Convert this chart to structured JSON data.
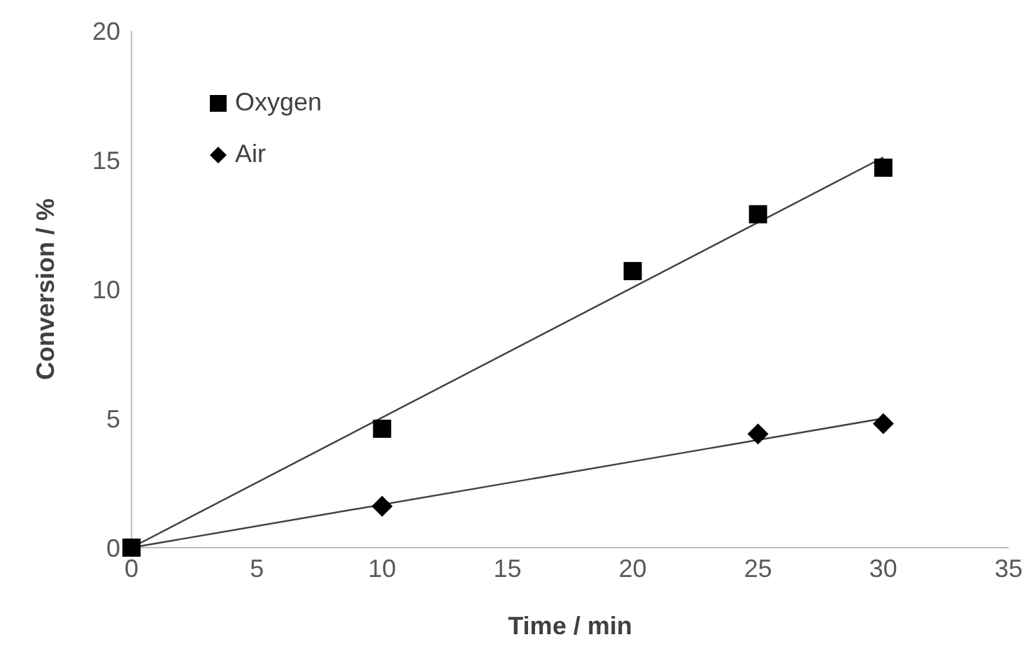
{
  "chart_data": {
    "type": "scatter",
    "xlabel": "Time / min",
    "ylabel": "Conversion / %",
    "xlim": [
      0,
      35
    ],
    "xticks": [
      0,
      5,
      10,
      15,
      20,
      25,
      30,
      35
    ],
    "ylim": [
      0,
      20
    ],
    "yticks": [
      0,
      5,
      10,
      15,
      20
    ],
    "grid": false,
    "legend": "top left",
    "series": [
      {
        "name": "Oxygen",
        "color": "#000000",
        "marker": "square",
        "x": [
          0,
          10,
          20,
          25,
          30
        ],
        "values": [
          0,
          4.6,
          10.7,
          12.9,
          14.7
        ]
      },
      {
        "name": "Air",
        "color": "#000000",
        "marker": "diamond",
        "x": [
          10,
          25,
          30
        ],
        "values": [
          1.6,
          4.4,
          4.8
        ]
      },
      {
        "type": "line",
        "color": "#404040",
        "x": [
          0,
          30
        ],
        "values": [
          0,
          15.1
        ]
      },
      {
        "type": "line",
        "color": "#404040",
        "x": [
          0,
          30
        ],
        "values": [
          0,
          5.0
        ]
      }
    ]
  }
}
